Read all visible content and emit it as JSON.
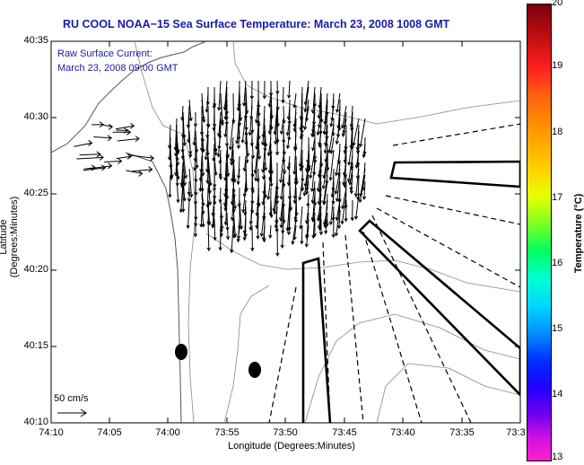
{
  "title": "RU COOL  NOAA−15  Sea Surface Temperature:  March 23, 2008 1008 GMT",
  "legend": {
    "line1": "Raw Surface Current:",
    "line2": "March 23, 2008 09:00 GMT"
  },
  "axes": {
    "xlabel": "Longitude (Degrees:Minutes)",
    "ylabel": "Latitude (Degrees:Minutes)",
    "xticks": [
      "74:10",
      "74:05",
      "74:00",
      "73:55",
      "73:50",
      "73:45",
      "73:40",
      "73:35",
      "73:3"
    ],
    "yticks": [
      "40:35",
      "40:30",
      "40:25",
      "40:20",
      "40:15",
      "40:10"
    ]
  },
  "colorbar": {
    "label": "Temperature (°C)",
    "ticks": [
      "20",
      "19",
      "18",
      "17",
      "16",
      "15",
      "14",
      "13"
    ],
    "min": 13,
    "max": 20
  },
  "scale_vector": {
    "label": "50 cm/s",
    "speed_cm_s": 50
  }
}
